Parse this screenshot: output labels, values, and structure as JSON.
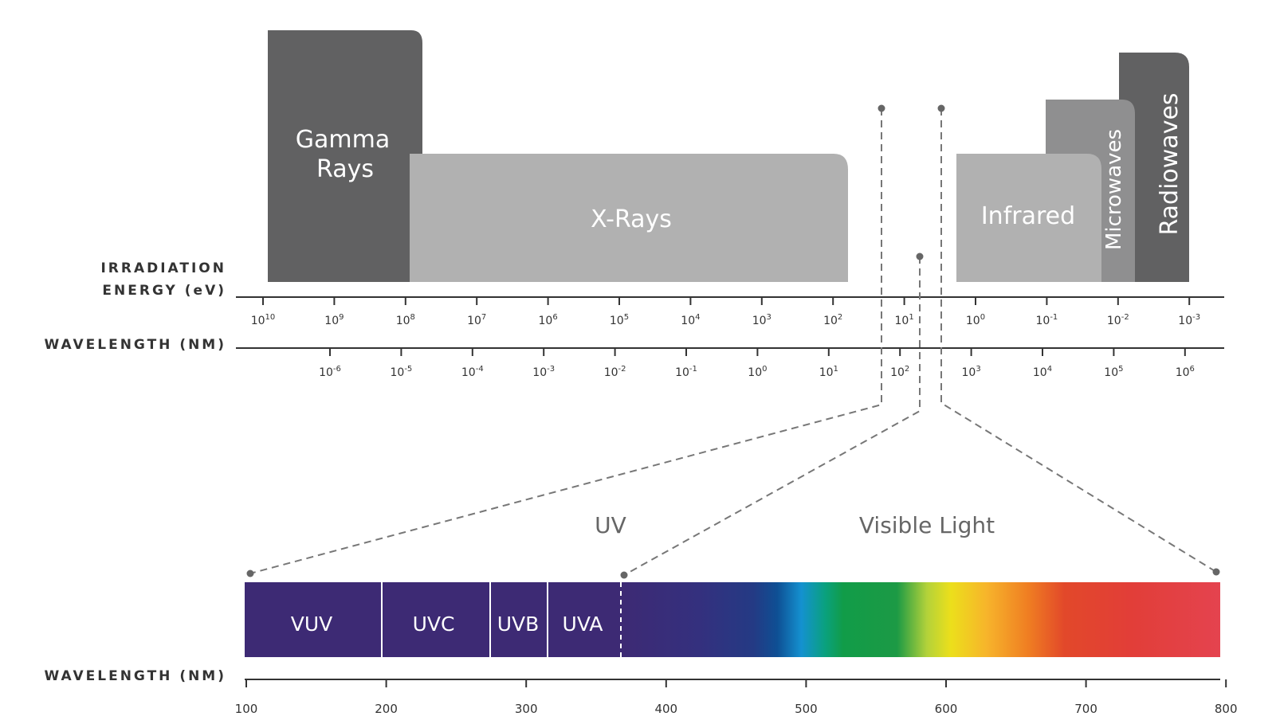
{
  "colors": {
    "gamma": "#616162",
    "xray": "#b1b1b1",
    "infrared": "#b1b1b1",
    "microwaves": "#8f8f90",
    "radiowaves": "#616162",
    "axis": "#333333",
    "uv_band": "#3d2a74",
    "dashed": "#777777"
  },
  "bands": {
    "gamma_line1": "Gamma",
    "gamma_line2": "Rays",
    "xray": "X-Rays",
    "infrared": "Infrared",
    "microwaves": "Microwaves",
    "radiowaves": "Radiowaves"
  },
  "axes": {
    "energy_title_line1": "IRRADIATION",
    "energy_title_line2": "ENERGY (eV)",
    "wavelength_title": "WAVELENGTH (NM)",
    "wavelength_title_bottom": "WAVELENGTH (NM)",
    "energy_exponents": [
      "10",
      "9",
      "8",
      "7",
      "6",
      "5",
      "4",
      "3",
      "2",
      "1",
      "0",
      "-1",
      "-2",
      "-3"
    ],
    "wavelength_exponents": [
      "-6",
      "-5",
      "-4",
      "-3",
      "-2",
      "-1",
      "0",
      "1",
      "2",
      "3",
      "4",
      "5",
      "6"
    ],
    "tick_base": "10"
  },
  "zoom": {
    "uv_label": "UV",
    "visible_label": "Visible Light"
  },
  "spectrum": {
    "segments": [
      "VUV",
      "UVC",
      "UVB",
      "UVA"
    ],
    "nm_ticks": [
      "100",
      "200",
      "300",
      "400",
      "500",
      "600",
      "700",
      "800"
    ]
  }
}
